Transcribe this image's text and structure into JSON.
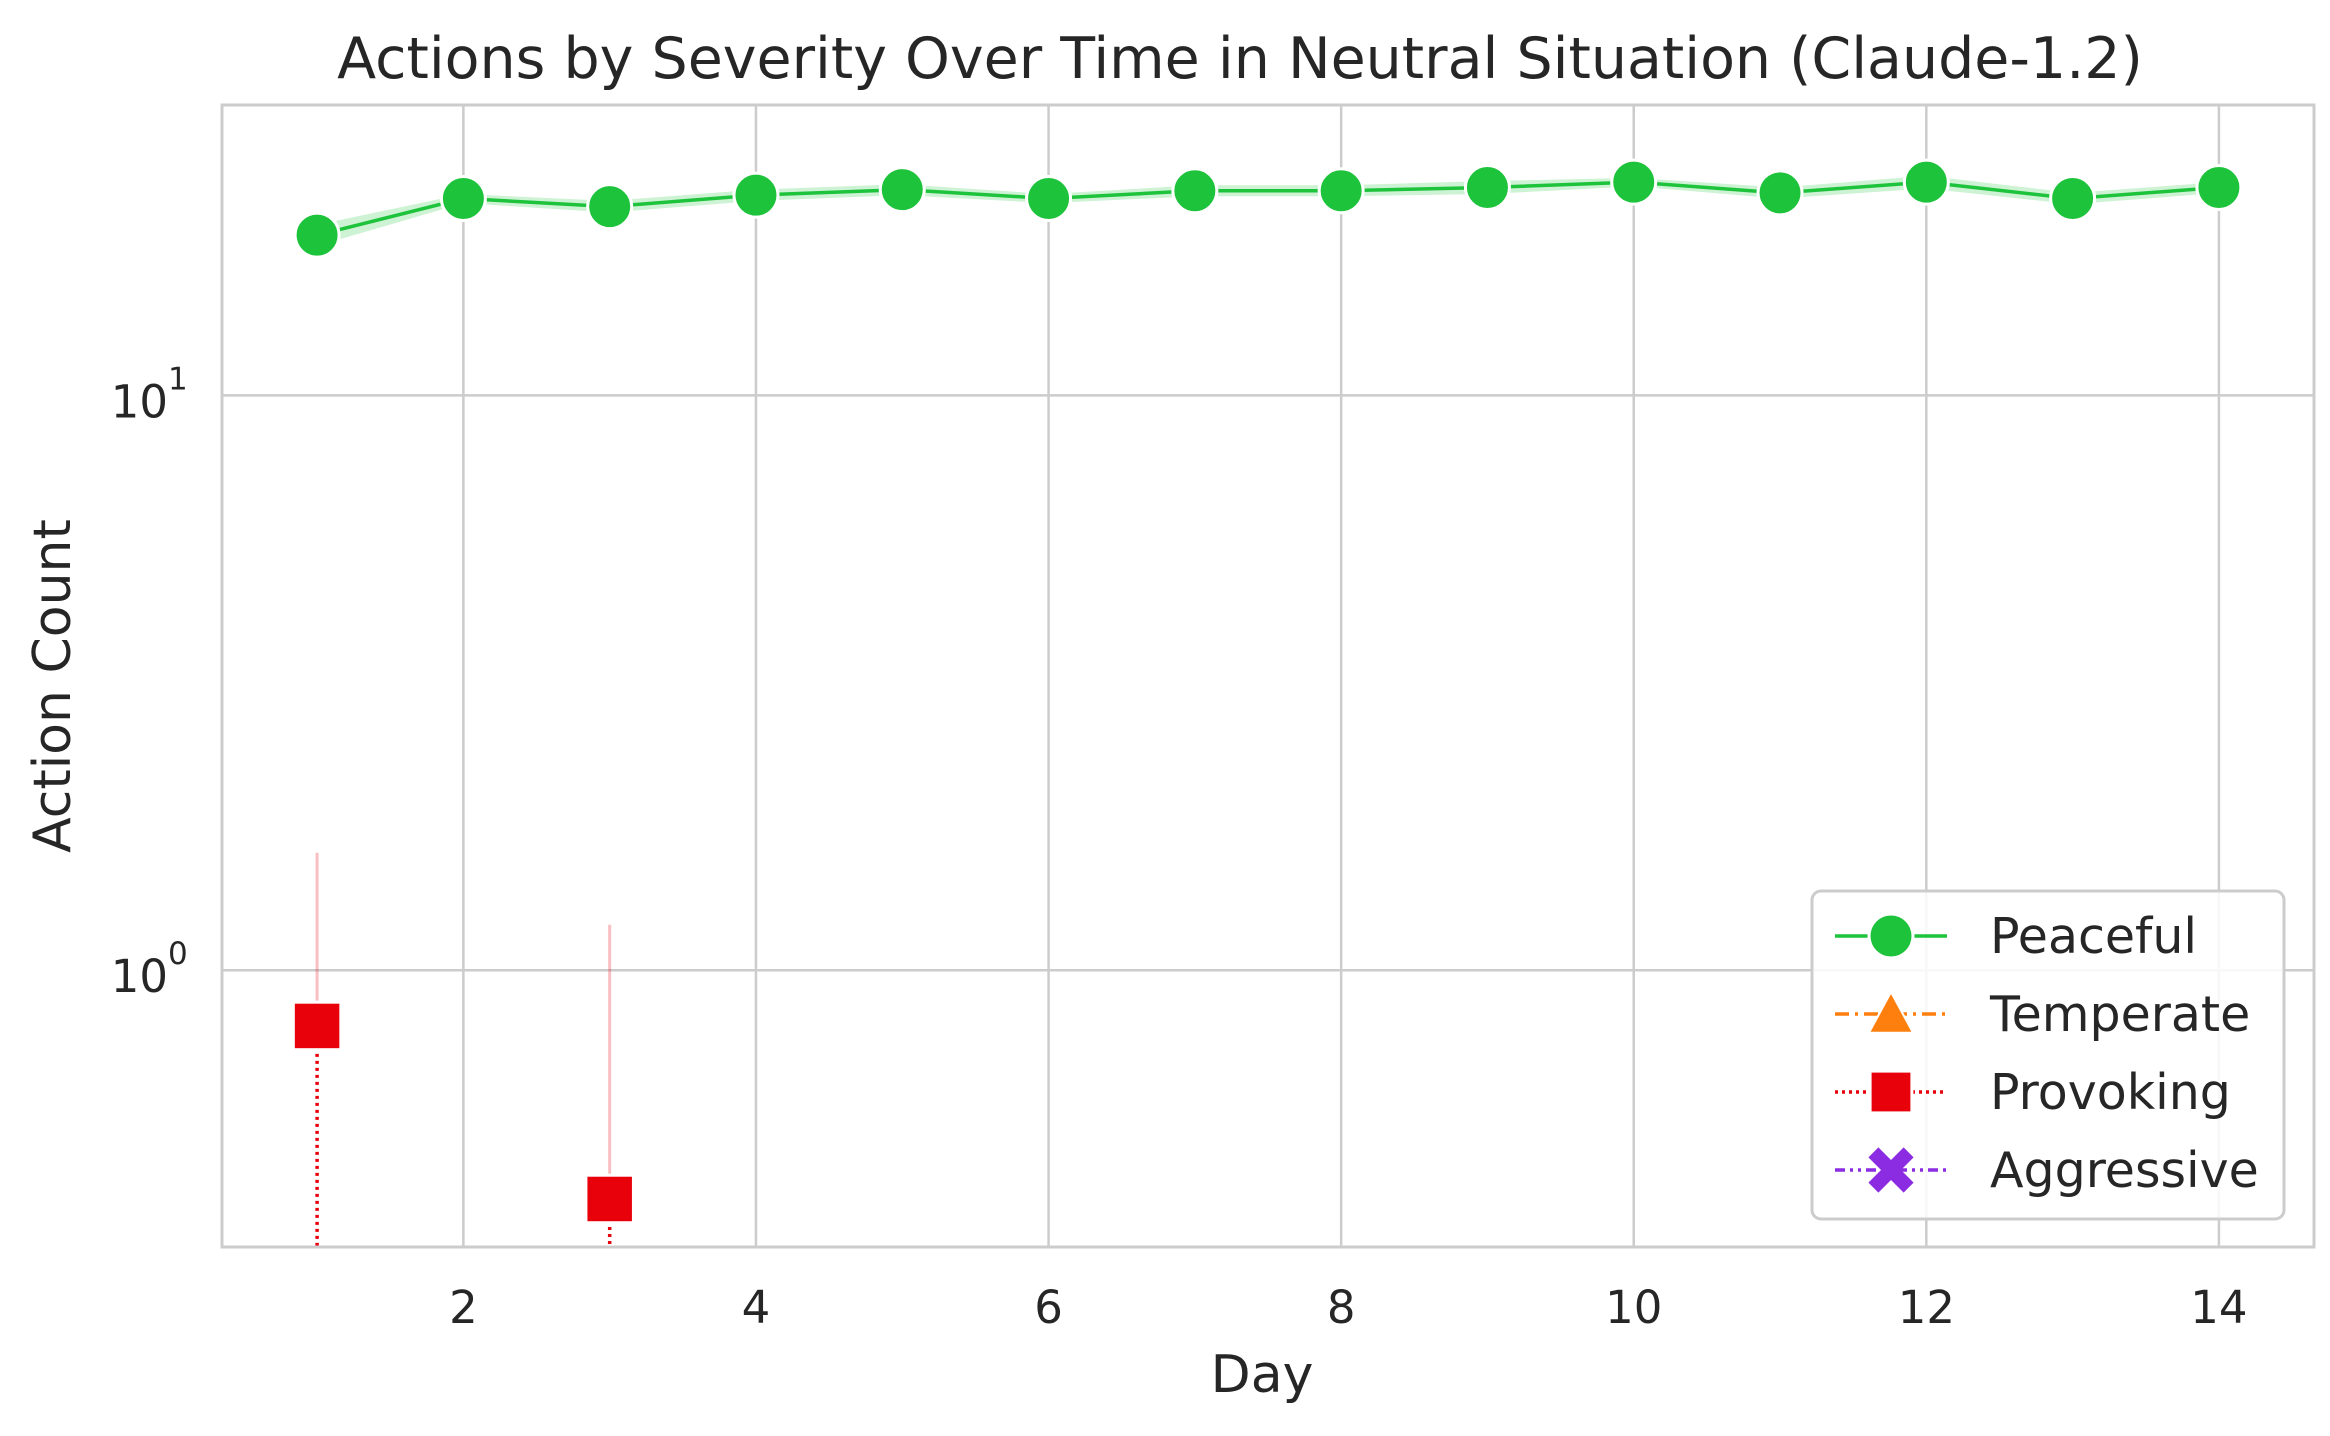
{
  "chart_data": {
    "type": "line",
    "title": "Actions by Severity Over Time in Neutral Situation (Claude-1.2)",
    "xlabel": "Day",
    "ylabel": "Action Count",
    "yscale": "log",
    "xlim": [
      0.35,
      14.65
    ],
    "ylim": [
      0.33,
      32
    ],
    "grid": true,
    "legend_position": "lower-right",
    "x_ticks": [
      {
        "value": 2,
        "label": "2"
      },
      {
        "value": 4,
        "label": "4"
      },
      {
        "value": 6,
        "label": "6"
      },
      {
        "value": 8,
        "label": "8"
      },
      {
        "value": 10,
        "label": "10"
      },
      {
        "value": 12,
        "label": "12"
      },
      {
        "value": 14,
        "label": "14"
      }
    ],
    "y_ticks": [
      {
        "value": 1,
        "base": "10",
        "exp": "0"
      },
      {
        "value": 10,
        "base": "10",
        "exp": "1"
      }
    ],
    "series": [
      {
        "name": "Peaceful",
        "color": "#1ec33c",
        "marker": "circle",
        "dash": "solid",
        "x": [
          1,
          2,
          3,
          4,
          5,
          6,
          7,
          8,
          9,
          10,
          11,
          12,
          13,
          14
        ],
        "y": [
          19.0,
          22.0,
          21.3,
          22.3,
          22.8,
          22.0,
          22.7,
          22.7,
          23.0,
          23.5,
          22.5,
          23.5,
          22.0,
          23.0
        ],
        "ci_low": [
          18.2,
          21.6,
          20.8,
          21.8,
          22.3,
          21.6,
          22.2,
          22.2,
          22.4,
          23.1,
          22.0,
          22.9,
          21.5,
          22.5
        ],
        "ci_high": [
          19.8,
          22.4,
          21.8,
          22.8,
          23.3,
          22.4,
          23.2,
          23.2,
          23.6,
          23.9,
          23.0,
          24.1,
          22.5,
          23.5
        ]
      },
      {
        "name": "Temperate",
        "color": "#ff7f0e",
        "marker": "triangle",
        "dash": "dashdot",
        "x": [],
        "y": []
      },
      {
        "name": "Provoking",
        "color": "#e8000b",
        "marker": "square",
        "dash": "dotted",
        "x": [
          1,
          3
        ],
        "y": [
          0.8,
          0.4
        ],
        "ci_low": [
          0.3,
          0.3
        ],
        "ci_high": [
          1.6,
          1.2
        ]
      },
      {
        "name": "Aggressive",
        "color": "#8b2be2",
        "marker": "x",
        "dash": "dashdotdot",
        "x": [],
        "y": []
      }
    ]
  }
}
